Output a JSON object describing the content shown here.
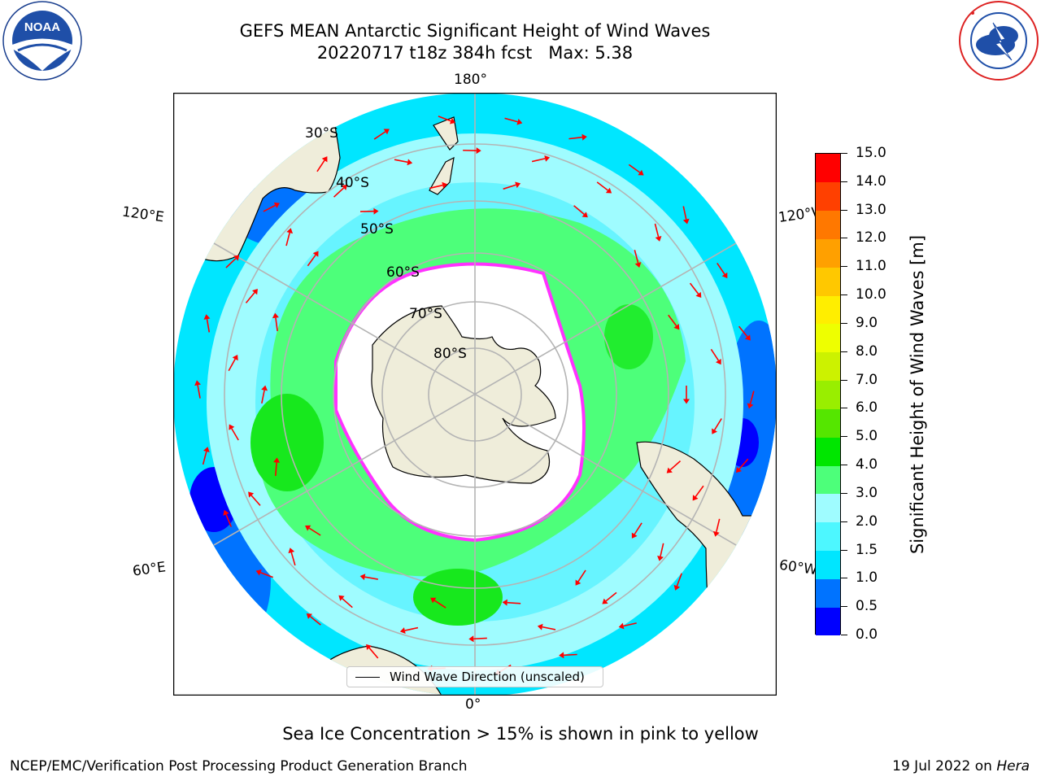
{
  "title": {
    "line1": "GEFS MEAN Antarctic Significant Height of Wind Waves",
    "line2": "20220717 t18z 384h fcst   Max: 5.38"
  },
  "map": {
    "projection": "south-polar-stereographic",
    "longitude_labels": {
      "top": "180°",
      "bottom": "0°",
      "upper_left": "120°E",
      "lower_left": "60°E",
      "upper_right": "120°W",
      "lower_right": "60°W"
    },
    "latitude_labels": [
      "30°S",
      "40°S",
      "50°S",
      "60°S",
      "70°S",
      "80°S"
    ],
    "legend_label": "Wind Wave Direction (unscaled)",
    "colors": {
      "land": "#efedda",
      "ocean_low": "#00e6ff",
      "ocean_mid": "#9ffcff",
      "ocean_high": "#4dff7a",
      "ocean_peak": "#17e81d",
      "ocean_calm": "#0073ff",
      "ice_edge": "#ff33ff",
      "grid": "#b4b4b4",
      "arrow": "#ff0000"
    }
  },
  "colorbar": {
    "title": "Significant Height of Wind Waves [m]",
    "ticks": [
      "0.0",
      "0.5",
      "1.0",
      "1.5",
      "2.0",
      "3.0",
      "4.0",
      "5.0",
      "6.0",
      "7.0",
      "8.0",
      "9.0",
      "10.0",
      "11.0",
      "12.0",
      "13.0",
      "14.0",
      "15.0"
    ],
    "colors": [
      "#0000ff",
      "#0073ff",
      "#00e6ff",
      "#4df7ff",
      "#9ffcff",
      "#4dff7a",
      "#00e600",
      "#55e600",
      "#99ee00",
      "#ccf200",
      "#eeff00",
      "#ffee00",
      "#ffc800",
      "#ffa000",
      "#ff7800",
      "#ff4000",
      "#ff0000"
    ]
  },
  "footer": {
    "ice_note": "Sea Ice Concentration > 15% is shown in pink to yellow",
    "credit": "NCEP/EMC/Verification Post Processing Product Generation Branch",
    "date": "19 Jul 2022 on ",
    "machine": "Hera"
  },
  "logos": {
    "noaa_text": "NOAA",
    "noaa_ring_text": "NATIONAL OCEANIC AND ATMOSPHERIC ADMINISTRATION · U.S. DEPARTMENT OF COMMERCE",
    "nws_ring_text": "NATIONAL WEATHER SERVICE"
  }
}
